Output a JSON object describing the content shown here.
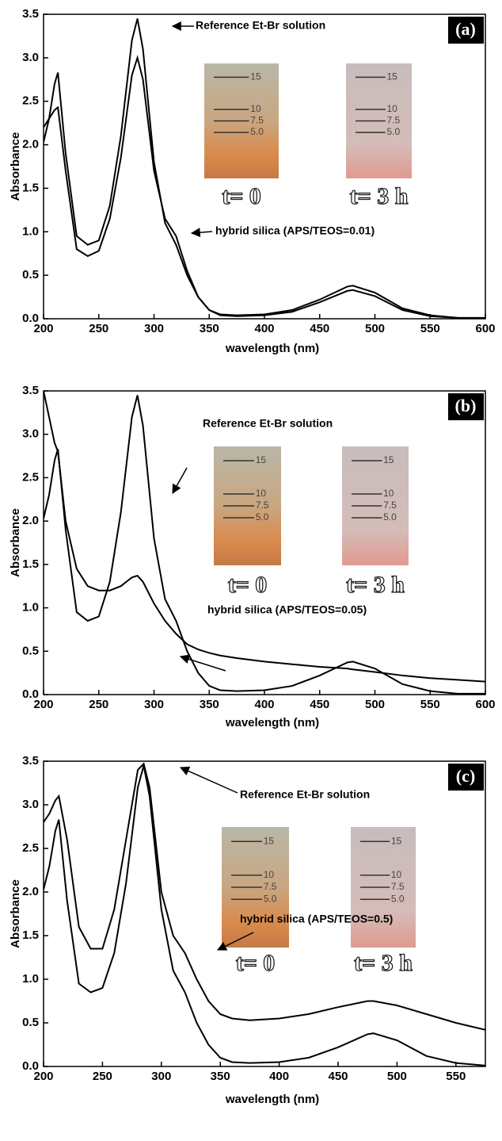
{
  "chart_data": [
    {
      "type": "line",
      "panel_label": "(a)",
      "xlabel": "wavelength (nm)",
      "ylabel": "Absorbance",
      "x": [
        200,
        205,
        210,
        213,
        220,
        230,
        240,
        250,
        260,
        270,
        280,
        285,
        290,
        300,
        310,
        320,
        330,
        340,
        350,
        360,
        375,
        400,
        425,
        450,
        475,
        480,
        500,
        525,
        550,
        575,
        600
      ],
      "series": [
        {
          "name": "Reference Et-Br solution",
          "color": "#000000",
          "values": [
            2.03,
            2.3,
            2.7,
            2.83,
            1.9,
            0.95,
            0.85,
            0.9,
            1.3,
            2.1,
            3.2,
            3.45,
            3.1,
            1.8,
            1.1,
            0.85,
            0.5,
            0.25,
            0.1,
            0.05,
            0.04,
            0.05,
            0.1,
            0.22,
            0.37,
            0.38,
            0.3,
            0.12,
            0.04,
            0.01,
            0.01
          ]
        },
        {
          "name": "hybrid silica (APS/TEOS=0.01)",
          "color": "#000000",
          "values": [
            2.2,
            2.3,
            2.4,
            2.43,
            1.7,
            0.8,
            0.72,
            0.78,
            1.15,
            1.85,
            2.8,
            3.0,
            2.75,
            1.7,
            1.15,
            0.95,
            0.55,
            0.25,
            0.1,
            0.04,
            0.03,
            0.04,
            0.08,
            0.19,
            0.32,
            0.33,
            0.26,
            0.1,
            0.03,
            0.01,
            0.0
          ]
        }
      ],
      "xlim": [
        200,
        600
      ],
      "ylim": [
        0,
        3.5
      ],
      "xticks": [
        200,
        250,
        300,
        350,
        400,
        450,
        500,
        550,
        600
      ],
      "yticks": [
        {
          "value": 0,
          "label": "0.0"
        },
        0.5,
        {
          "value": 1,
          "label": "1.0"
        },
        1.5,
        {
          "value": 2,
          "label": "2.0"
        },
        2.5,
        {
          "value": 3,
          "label": "3.0"
        },
        3.5
      ],
      "photos": [
        {
          "caption": "t= 0",
          "scale": [
            "15",
            "10",
            "7.5",
            "5.0"
          ]
        },
        {
          "caption": "t= 3 h",
          "scale": [
            "15",
            "10",
            "7.5",
            "5.0"
          ]
        }
      ]
    },
    {
      "type": "line",
      "panel_label": "(b)",
      "xlabel": "wavelength (nm)",
      "ylabel": "Absorbance",
      "x": [
        200,
        205,
        210,
        213,
        220,
        230,
        240,
        250,
        260,
        270,
        280,
        285,
        290,
        300,
        310,
        320,
        330,
        340,
        350,
        360,
        375,
        400,
        425,
        450,
        475,
        480,
        500,
        525,
        550,
        575,
        600
      ],
      "series": [
        {
          "name": "Reference Et-Br solution",
          "color": "#000000",
          "values": [
            2.03,
            2.3,
            2.7,
            2.83,
            1.9,
            0.95,
            0.85,
            0.9,
            1.3,
            2.1,
            3.2,
            3.45,
            3.1,
            1.8,
            1.1,
            0.85,
            0.5,
            0.25,
            0.1,
            0.05,
            0.04,
            0.05,
            0.1,
            0.22,
            0.37,
            0.38,
            0.3,
            0.12,
            0.04,
            0.01,
            0.01
          ]
        },
        {
          "name": "hybrid silica (APS/TEOS=0.05)",
          "color": "#000000",
          "values": [
            3.5,
            3.2,
            2.9,
            2.8,
            2.0,
            1.45,
            1.25,
            1.2,
            1.2,
            1.25,
            1.35,
            1.37,
            1.3,
            1.05,
            0.85,
            0.7,
            0.58,
            0.52,
            0.48,
            0.45,
            0.42,
            0.38,
            0.35,
            0.32,
            0.3,
            0.29,
            0.26,
            0.22,
            0.19,
            0.17,
            0.15
          ]
        }
      ],
      "xlim": [
        200,
        600
      ],
      "ylim": [
        0,
        3.5
      ],
      "xticks": [
        200,
        250,
        300,
        350,
        400,
        450,
        500,
        550,
        600
      ],
      "yticks": [
        {
          "value": 0,
          "label": "0.0"
        },
        0.5,
        {
          "value": 1,
          "label": "1.0"
        },
        1.5,
        {
          "value": 2,
          "label": "2.0"
        },
        2.5,
        {
          "value": 3,
          "label": "3.0"
        },
        3.5
      ],
      "photos": [
        {
          "caption": "t= 0",
          "scale": [
            "15",
            "10",
            "7.5",
            "5.0"
          ]
        },
        {
          "caption": "t= 3 h",
          "scale": [
            "15",
            "10",
            "7.5",
            "5.0"
          ]
        }
      ]
    },
    {
      "type": "line",
      "panel_label": "(c)",
      "xlabel": "wavelength (nm)",
      "ylabel": "Absorbance",
      "x": [
        200,
        205,
        210,
        213,
        220,
        230,
        240,
        250,
        260,
        270,
        280,
        285,
        290,
        300,
        310,
        320,
        330,
        340,
        350,
        360,
        375,
        400,
        425,
        450,
        475,
        480,
        500,
        525,
        550,
        575
      ],
      "series": [
        {
          "name": "Reference Et-Br solution",
          "color": "#000000",
          "values": [
            2.03,
            2.3,
            2.7,
            2.83,
            1.9,
            0.95,
            0.85,
            0.9,
            1.3,
            2.1,
            3.2,
            3.45,
            3.1,
            1.8,
            1.1,
            0.85,
            0.5,
            0.25,
            0.1,
            0.05,
            0.04,
            0.05,
            0.1,
            0.22,
            0.37,
            0.38,
            0.3,
            0.12,
            0.04,
            0.01
          ]
        },
        {
          "name": "hybrid silica (APS/TEOS=0.5)",
          "color": "#000000",
          "values": [
            2.8,
            2.9,
            3.05,
            3.1,
            2.6,
            1.6,
            1.35,
            1.35,
            1.8,
            2.6,
            3.4,
            3.47,
            3.2,
            2.0,
            1.5,
            1.3,
            1.0,
            0.75,
            0.6,
            0.55,
            0.53,
            0.55,
            0.6,
            0.68,
            0.75,
            0.75,
            0.7,
            0.6,
            0.5,
            0.42
          ]
        }
      ],
      "xlim": [
        200,
        575
      ],
      "ylim": [
        0,
        3.5
      ],
      "xticks": [
        200,
        250,
        300,
        350,
        400,
        450,
        500,
        550
      ],
      "yticks": [
        {
          "value": 0,
          "label": "0.0"
        },
        0.5,
        {
          "value": 1,
          "label": "1.0"
        },
        1.5,
        {
          "value": 2,
          "label": "2.0"
        },
        2.5,
        {
          "value": 3,
          "label": "3.0"
        },
        3.5
      ],
      "photos": [
        {
          "caption": "t= 0",
          "scale": [
            "15",
            "10",
            "7.5",
            "5.0"
          ]
        },
        {
          "caption": "t= 3 h",
          "scale": [
            "15",
            "10",
            "7.5",
            "5.0"
          ]
        }
      ]
    }
  ]
}
